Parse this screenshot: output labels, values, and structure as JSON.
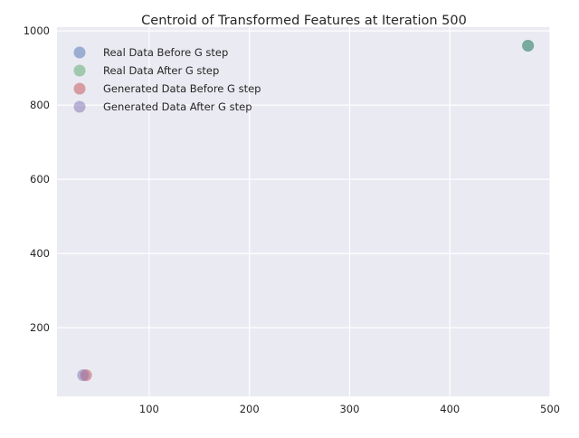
{
  "chart_data": {
    "type": "scatter",
    "title": "Centroid of Transformed Features at Iteration 500",
    "xlabel": "",
    "ylabel": "",
    "xlim": [
      8,
      500
    ],
    "ylim": [
      15,
      1010
    ],
    "xticks": [
      100,
      200,
      300,
      400,
      500
    ],
    "yticks": [
      200,
      400,
      600,
      800,
      1000
    ],
    "grid": true,
    "legend_position": "top-left",
    "series": [
      {
        "name": "Real Data Before G step",
        "color": "#4c72b0",
        "points": [
          {
            "x": 478,
            "y": 960
          }
        ]
      },
      {
        "name": "Real Data After G step",
        "color": "#55a868",
        "points": [
          {
            "x": 478,
            "y": 960
          }
        ]
      },
      {
        "name": "Generated Data Before G step",
        "color": "#c44e52",
        "points": [
          {
            "x": 37,
            "y": 72
          }
        ]
      },
      {
        "name": "Generated Data After G step",
        "color": "#8172b2",
        "points": [
          {
            "x": 34,
            "y": 72
          }
        ]
      }
    ]
  },
  "style": {
    "plot_background": "#eaeaf2",
    "grid_color": "#ffffff",
    "text_color": "#262626",
    "marker_opacity": 0.5
  }
}
